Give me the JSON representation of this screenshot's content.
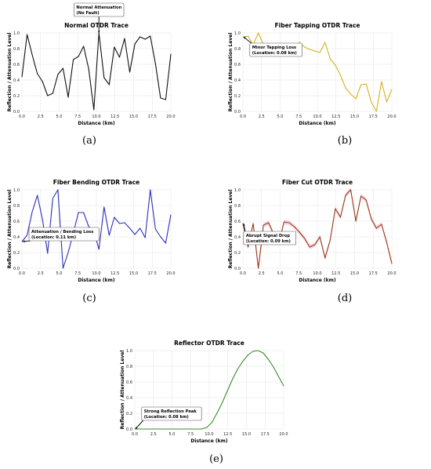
{
  "captions": [
    "(a)",
    "(b)",
    "(c)",
    "(d)",
    "(e)"
  ],
  "chart_data": [
    {
      "type": "line",
      "title": "Normal OTDR Trace",
      "xlabel": "Distance (km)",
      "ylabel": "Reflection / Attenuation Level",
      "xlim": [
        0,
        20
      ],
      "ylim": [
        0,
        1
      ],
      "xticks": [
        "0.0",
        "2.5",
        "5.0",
        "7.5",
        "10.0",
        "12.5",
        "15.0",
        "17.5",
        "20.0"
      ],
      "yticks": [
        "0.0",
        "0.2",
        "0.4",
        "0.6",
        "0.8",
        "1.0"
      ],
      "color": "#111111",
      "grid": true,
      "x": [
        0,
        0.69,
        1.38,
        2.07,
        2.76,
        3.45,
        4.14,
        4.83,
        5.52,
        6.21,
        6.9,
        7.59,
        8.28,
        8.97,
        9.66,
        10.34,
        11.03,
        11.72,
        12.41,
        13.1,
        13.79,
        14.48,
        15.17,
        15.86,
        16.55,
        17.24,
        17.93,
        18.62,
        19.31,
        20
      ],
      "y": [
        0.44,
        0.98,
        0.72,
        0.48,
        0.38,
        0.2,
        0.23,
        0.47,
        0.55,
        0.18,
        0.66,
        0.7,
        0.83,
        0.54,
        0.02,
        1.0,
        0.43,
        0.34,
        0.82,
        0.69,
        0.93,
        0.5,
        0.86,
        0.95,
        0.92,
        0.96,
        0.61,
        0.17,
        0.15,
        0.73
      ],
      "annotation": {
        "lines": [
          "Normal Attenuation",
          "(No Fault)"
        ],
        "x": 10.34,
        "y": 1.0
      }
    },
    {
      "type": "line",
      "title": "Fiber Tapping OTDR Trace",
      "xlabel": "Distance (km)",
      "ylabel": "Reflection / Attenuation Level",
      "xlim": [
        0,
        20
      ],
      "ylim": [
        0,
        1
      ],
      "xticks": [
        "0.0",
        "2.5",
        "5.0",
        "7.5",
        "10.0",
        "12.5",
        "15.0",
        "17.5",
        "20.0"
      ],
      "yticks": [
        "0.0",
        "0.2",
        "0.4",
        "0.6",
        "0.8",
        "1.0"
      ],
      "color": "#d4b21c",
      "grid": true,
      "x": [
        0,
        0.69,
        1.38,
        2.07,
        2.76,
        3.45,
        4.14,
        4.83,
        5.52,
        6.21,
        6.9,
        7.59,
        8.28,
        8.97,
        9.66,
        10.34,
        11.03,
        11.72,
        12.41,
        13.1,
        13.79,
        14.48,
        15.17,
        15.86,
        16.55,
        17.24,
        17.93,
        18.62,
        19.31,
        20
      ],
      "y": [
        0.95,
        0.96,
        0.85,
        1.0,
        0.85,
        0.79,
        0.81,
        0.78,
        0.72,
        0.84,
        0.73,
        0.88,
        0.82,
        0.79,
        0.77,
        0.75,
        0.88,
        0.67,
        0.59,
        0.46,
        0.3,
        0.22,
        0.16,
        0.34,
        0.35,
        0.12,
        0.0,
        0.38,
        0.12,
        0.28
      ],
      "annotation": {
        "lines": [
          "Minor Tapping Loss",
          "(Location: 0.08 km)"
        ],
        "x": 0.08,
        "y": 0.95
      }
    },
    {
      "type": "line",
      "title": "Fiber Bending OTDR Trace",
      "xlabel": "Distance (km)",
      "ylabel": "Reflection / Attenuation Level",
      "xlim": [
        0,
        20
      ],
      "ylim": [
        0,
        1
      ],
      "xticks": [
        "0.0",
        "2.5",
        "5.0",
        "7.5",
        "10.0",
        "12.5",
        "15.0",
        "17.5",
        "20.0"
      ],
      "yticks": [
        "0.0",
        "0.2",
        "0.4",
        "0.6",
        "0.8",
        "1.0"
      ],
      "color": "#2b2fb8",
      "grid": true,
      "x": [
        0,
        0.69,
        1.38,
        2.07,
        2.76,
        3.45,
        4.14,
        4.83,
        5.52,
        6.21,
        6.9,
        7.59,
        8.28,
        8.97,
        9.66,
        10.34,
        11.03,
        11.72,
        12.41,
        13.1,
        13.79,
        14.48,
        15.17,
        15.86,
        16.55,
        17.24,
        17.93,
        18.62,
        19.31,
        20
      ],
      "y": [
        0.34,
        0.42,
        0.72,
        0.93,
        0.62,
        0.19,
        0.89,
        1.0,
        0.0,
        0.2,
        0.45,
        0.71,
        0.71,
        0.53,
        0.48,
        0.24,
        0.78,
        0.42,
        0.65,
        0.57,
        0.58,
        0.51,
        0.43,
        0.51,
        0.39,
        1.0,
        0.5,
        0.4,
        0.32,
        0.68
      ],
      "annotation": {
        "lines": [
          "Attenuation / Bending Loss",
          "(Location: 0.11 km)"
        ],
        "x": 0.11,
        "y": 0.34
      }
    },
    {
      "type": "line",
      "title": "Fiber Cut OTDR Trace",
      "xlabel": "Distance (km)",
      "ylabel": "Reflection / Attenuation Level",
      "xlim": [
        0,
        20
      ],
      "ylim": [
        0,
        1
      ],
      "xticks": [
        "0.0",
        "2.5",
        "5.0",
        "7.5",
        "10.0",
        "12.5",
        "15.0",
        "17.5",
        "20.0"
      ],
      "yticks": [
        "0.0",
        "0.2",
        "0.4",
        "0.6",
        "0.8",
        "1.0"
      ],
      "color": "#9a3a16",
      "band_color": "#f6c6d6",
      "grid": true,
      "x": [
        0,
        0.69,
        1.38,
        2.07,
        2.76,
        3.45,
        4.14,
        4.83,
        5.52,
        6.21,
        6.9,
        7.59,
        8.28,
        8.97,
        9.66,
        10.34,
        11.03,
        11.72,
        12.41,
        13.1,
        13.79,
        14.48,
        15.17,
        15.86,
        16.55,
        17.24,
        17.93,
        18.62,
        19.31,
        20
      ],
      "y": [
        0.57,
        0.27,
        0.57,
        0.0,
        0.55,
        0.58,
        0.43,
        0.32,
        0.59,
        0.58,
        0.53,
        0.46,
        0.38,
        0.27,
        0.3,
        0.4,
        0.13,
        0.36,
        0.76,
        0.65,
        0.93,
        1.0,
        0.6,
        0.92,
        0.87,
        0.63,
        0.51,
        0.56,
        0.33,
        0.06
      ],
      "annotation": {
        "lines": [
          "Abrupt Signal Drop",
          "(Location: 0.09 km)"
        ],
        "x": 0.09,
        "y": 0.57
      }
    },
    {
      "type": "line",
      "title": "Reflector OTDR Trace",
      "xlabel": "Distance (km)",
      "ylabel": "Reflection / Attenuation Level",
      "xlim": [
        0,
        20
      ],
      "ylim": [
        0,
        1
      ],
      "xticks": [
        "0.0",
        "2.5",
        "5.0",
        "7.5",
        "10.0",
        "12.5",
        "15.0",
        "17.5",
        "20.0"
      ],
      "yticks": [
        "0.0",
        "0.2",
        "0.4",
        "0.6",
        "0.8",
        "1.0"
      ],
      "color": "#3a8a2a",
      "grid": true,
      "x": [
        0,
        0.69,
        1.38,
        2.07,
        2.76,
        3.45,
        4.14,
        4.83,
        5.52,
        6.21,
        6.9,
        7.59,
        8.28,
        8.97,
        9.66,
        10.34,
        11.03,
        11.72,
        12.41,
        13.1,
        13.79,
        14.48,
        15.17,
        15.86,
        16.55,
        17.24,
        17.93,
        18.62,
        19.31,
        20
      ],
      "y": [
        0.0,
        0.0,
        0.0,
        0.0,
        0.0,
        0.0,
        0.0,
        0.0,
        0.0,
        0.0,
        0.0,
        0.0,
        0.0,
        0.0,
        0.02,
        0.08,
        0.2,
        0.33,
        0.48,
        0.63,
        0.76,
        0.86,
        0.94,
        0.99,
        1.0,
        0.97,
        0.89,
        0.79,
        0.67,
        0.55
      ],
      "annotation": {
        "lines": [
          "Strong Reflection Peak",
          "(Location: 0.08 km)"
        ],
        "x": 0.08,
        "y": 0.0
      }
    }
  ]
}
